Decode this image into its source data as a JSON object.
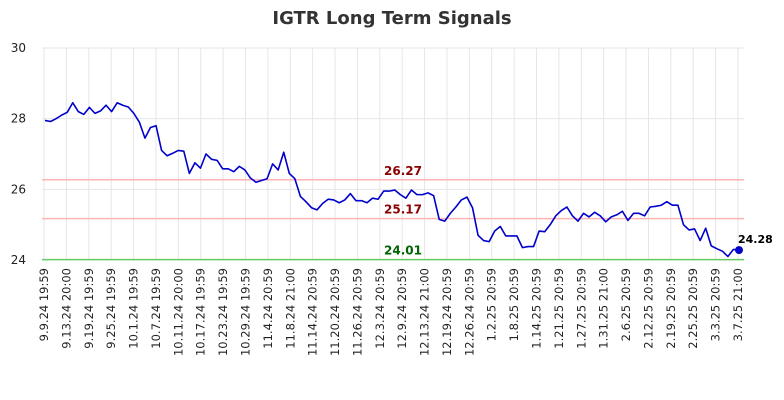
{
  "chart_data": {
    "type": "line",
    "title": "IGTR Long Term Signals",
    "xlabel": "",
    "ylabel": "",
    "ylim": [
      24,
      30
    ],
    "yticks": [
      "24",
      "26",
      "28",
      "30"
    ],
    "grid": true,
    "x_tick_labels": [
      "9.9.24 19:59",
      "9.13.24 20:00",
      "9.19.24 19:59",
      "9.25.24 19:59",
      "10.1.24 19:59",
      "10.7.24 19:59",
      "10.11.24 20:00",
      "10.17.24 19:59",
      "10.23.24 19:59",
      "10.29.24 19:59",
      "11.4.24 20:59",
      "11.8.24 21:00",
      "11.14.24 20:59",
      "11.20.24 20:59",
      "11.26.24 20:59",
      "12.3.24 20:59",
      "12.9.24 20:59",
      "12.13.24 21:00",
      "12.19.24 20:59",
      "12.26.24 20:59",
      "1.2.25 20:59",
      "1.8.25 20:59",
      "1.14.25 20:59",
      "1.21.25 20:59",
      "1.27.25 20:59",
      "1.31.25 21:00",
      "2.6.25 20:59",
      "2.12.25 20:59",
      "2.19.25 20:59",
      "2.25.25 20:59",
      "3.3.25 20:59",
      "3.7.25 21:00"
    ],
    "series": [
      {
        "color": "#0000cc",
        "values": [
          27.95,
          27.92,
          28.0,
          28.1,
          28.18,
          28.45,
          28.2,
          28.12,
          28.32,
          28.15,
          28.22,
          28.38,
          28.2,
          28.45,
          28.38,
          28.33,
          28.15,
          27.9,
          27.45,
          27.75,
          27.8,
          27.1,
          26.95,
          27.02,
          27.1,
          27.08,
          26.45,
          26.75,
          26.6,
          27.0,
          26.85,
          26.82,
          26.58,
          26.58,
          26.5,
          26.65,
          26.55,
          26.32,
          26.2,
          26.25,
          26.3,
          26.72,
          26.55,
          27.05,
          26.45,
          26.3,
          25.8,
          25.65,
          25.48,
          25.42,
          25.6,
          25.72,
          25.7,
          25.62,
          25.7,
          25.88,
          25.68,
          25.68,
          25.62,
          25.75,
          25.72,
          25.95,
          25.95,
          25.98,
          25.85,
          25.75,
          25.98,
          25.85,
          25.85,
          25.9,
          25.82,
          25.15,
          25.1,
          25.32,
          25.5,
          25.7,
          25.78,
          25.48,
          24.7,
          24.55,
          24.52,
          24.82,
          24.95,
          24.68,
          24.68,
          24.68,
          24.35,
          24.38,
          24.38,
          24.82,
          24.8,
          25.0,
          25.25,
          25.4,
          25.5,
          25.25,
          25.1,
          25.32,
          25.22,
          25.35,
          25.25,
          25.08,
          25.22,
          25.28,
          25.38,
          25.12,
          25.32,
          25.32,
          25.25,
          25.5,
          25.52,
          25.55,
          25.65,
          25.55,
          25.55,
          25.0,
          24.85,
          24.88,
          24.55,
          24.9,
          24.4,
          24.32,
          24.25,
          24.1,
          24.3,
          24.28
        ]
      }
    ],
    "reference_lines": [
      {
        "value": 26.27,
        "label": "26.27",
        "line_color": "#ffb3b3",
        "label_color": "#8b0000"
      },
      {
        "value": 25.17,
        "label": "25.17",
        "line_color": "#ffb3b3",
        "label_color": "#8b0000"
      },
      {
        "value": 24.01,
        "label": "24.01",
        "line_color": "#66cc66",
        "label_color": "#006400"
      }
    ],
    "last_point": {
      "value": 24.28,
      "label": "24.28",
      "color": "#0000cc"
    }
  }
}
